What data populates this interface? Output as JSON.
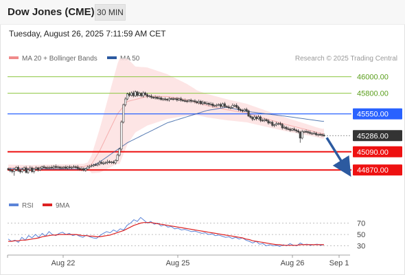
{
  "header": {
    "title": "Dow Jones (CME)",
    "timeframe": "30 MIN"
  },
  "timestamp": "Tuesday, August 26, 2025 7:11:59 AM CET",
  "legend": {
    "bollinger_label": "MA 20 + Bollinger Bands",
    "ma50_label": "MA 50",
    "rsi_label": "RSI",
    "ma9_label": "9MA",
    "credit": "Research © 2025 Trading Central"
  },
  "colors": {
    "bollinger": "#f08a8a",
    "bollinger_fill": "#fde0e0",
    "ma50": "#2c5aa0",
    "resistance": "#8cc63f",
    "pivot": "#2962ff",
    "support": "#ee1111",
    "current": "#333333",
    "rsi": "#5b84d8",
    "rsi_ma": "#dd2222",
    "arrow": "#2c5aa0"
  },
  "chart_data": [
    {
      "type": "line",
      "subtype": "candlestick",
      "x_ticks": [
        "Aug 22",
        "Aug 25",
        "Aug 26",
        "Sep 1"
      ],
      "ylim": [
        44680,
        46130
      ],
      "levels": [
        {
          "value": 46000,
          "label": "46000.00",
          "kind": "resistance"
        },
        {
          "value": 45800,
          "label": "45800.00",
          "kind": "resistance"
        },
        {
          "value": 45550,
          "label": "45550.00",
          "kind": "pivot"
        },
        {
          "value": 45286,
          "label": "45286.00",
          "kind": "current"
        },
        {
          "value": 45090,
          "label": "45090.00",
          "kind": "support"
        },
        {
          "value": 44870,
          "label": "44870.00",
          "kind": "support"
        }
      ],
      "series": [
        {
          "name": "MA 20 + Bollinger Bands",
          "type": "band",
          "points": [
            [
              0,
              44900
            ],
            [
              10,
              44895
            ],
            [
              20,
              44900
            ],
            [
              30,
              44905
            ],
            [
              38,
              44910
            ],
            [
              42,
              44940
            ],
            [
              46,
              45100
            ],
            [
              50,
              45300
            ],
            [
              55,
              45550
            ],
            [
              60,
              45700
            ],
            [
              70,
              45760
            ],
            [
              80,
              45760
            ],
            [
              90,
              45720
            ],
            [
              100,
              45650
            ],
            [
              110,
              45600
            ],
            [
              120,
              45560
            ],
            [
              130,
              45490
            ],
            [
              140,
              45420
            ],
            [
              150,
              45360
            ],
            [
              158,
              45310
            ]
          ]
        },
        {
          "name": "MA 50",
          "type": "line",
          "points": [
            [
              0,
              44885
            ],
            [
              20,
              44880
            ],
            [
              38,
              44880
            ],
            [
              45,
              44950
            ],
            [
              60,
              45200
            ],
            [
              80,
              45440
            ],
            [
              100,
              45590
            ],
            [
              110,
              45630
            ],
            [
              120,
              45580
            ],
            [
              140,
              45520
            ],
            [
              158,
              45460
            ]
          ]
        },
        {
          "name": "price",
          "type": "candles",
          "values": [
            44876,
            44860,
            44852,
            44876,
            44902,
            44862,
            44848,
            44874,
            44896,
            44840,
            44872,
            44894,
            44850,
            44880,
            44896,
            44872,
            44891,
            44908,
            44900,
            44896,
            44897,
            44902,
            44896,
            44912,
            44901,
            44906,
            44894,
            44897,
            44905,
            44892,
            44906,
            44898,
            44903,
            44908,
            44905,
            44889,
            44878,
            44885,
            44867,
            44881,
            44905,
            44915,
            44923,
            44932,
            44931,
            44945,
            44962,
            44951,
            44953,
            44958,
            44970,
            44962,
            44966,
            44955,
            44986,
            45050,
            45123,
            45450,
            45660,
            45730,
            45791,
            45774,
            45804,
            45769,
            45816,
            45774,
            45799,
            45769,
            45804,
            45782,
            45763,
            45766,
            45751,
            45744,
            45751,
            45736,
            45744,
            45723,
            45731,
            45727,
            45718,
            45735,
            45733,
            45730,
            45733,
            45718,
            45733,
            45715,
            45710,
            45707,
            45704,
            45716,
            45704,
            45707,
            45697,
            45684,
            45702,
            45673,
            45689,
            45676,
            45677,
            45666,
            45669,
            45648,
            45651,
            45656,
            45664,
            45640,
            45672,
            45640,
            45635,
            45626,
            45628,
            45653,
            45653,
            45630,
            45604,
            45591,
            45587,
            45604,
            45587,
            45523,
            45508,
            45486,
            45512,
            45491,
            45513,
            45471,
            45470,
            45480,
            45467,
            45439,
            45448,
            45410,
            45416,
            45432,
            45432,
            45423,
            45380,
            45387,
            45369,
            45364,
            45351,
            45366,
            45354,
            45344,
            45330,
            45256,
            45336,
            45336,
            45333,
            45324,
            45313,
            45313,
            45314,
            45298,
            45301,
            45299,
            45292,
            45286
          ]
        }
      ],
      "projection": {
        "from": 45286,
        "to": 44870
      }
    },
    {
      "type": "line",
      "title": "RSI",
      "ylim": [
        15,
        90
      ],
      "ticks": [
        70,
        50,
        30
      ],
      "series": [
        {
          "name": "RSI",
          "values": [
            42,
            38,
            40,
            36,
            45,
            40,
            48,
            44,
            50,
            45,
            52,
            47,
            55,
            50,
            48,
            52,
            54,
            50,
            52,
            48,
            50,
            47,
            45,
            49,
            46,
            44,
            43,
            48,
            52,
            55,
            53,
            58,
            55,
            60,
            58,
            66,
            70,
            76,
            73,
            80,
            75,
            70,
            73,
            68,
            70,
            65,
            67,
            63,
            64,
            60,
            61,
            58,
            59,
            57,
            55,
            56,
            54,
            52,
            53,
            50,
            51,
            48,
            49,
            47,
            45,
            46,
            43,
            45,
            42,
            44,
            40,
            38,
            35,
            38,
            33,
            34,
            30,
            32,
            30,
            31,
            29,
            32,
            30,
            34,
            31,
            30,
            35,
            32,
            33,
            31,
            32,
            33,
            31,
            32
          ]
        },
        {
          "name": "9MA",
          "values": [
            38,
            38,
            39,
            39,
            40,
            40,
            41,
            42,
            43,
            44,
            46,
            47,
            48,
            49,
            49,
            50,
            50,
            50,
            50,
            50,
            50,
            49,
            48,
            48,
            47,
            47,
            46,
            46,
            47,
            48,
            49,
            51,
            53,
            55,
            57,
            60,
            63,
            66,
            68,
            70,
            71,
            71,
            71,
            70,
            69,
            68,
            67,
            66,
            65,
            64,
            63,
            62,
            61,
            60,
            59,
            58,
            57,
            56,
            55,
            54,
            53,
            52,
            51,
            50,
            49,
            48,
            47,
            46,
            45,
            44,
            42,
            41,
            39,
            38,
            37,
            36,
            35,
            34,
            33,
            32,
            32,
            31,
            31,
            31,
            31,
            31,
            32,
            32,
            32,
            32,
            32,
            32,
            32,
            32
          ]
        }
      ]
    }
  ]
}
